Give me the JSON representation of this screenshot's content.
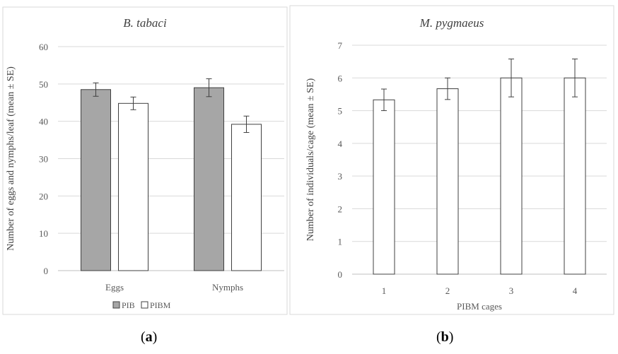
{
  "chart_data": [
    {
      "type": "bar",
      "title": "B. tabaci",
      "xlabel": "",
      "ylabel": "Number of eggs and nymphs/leaf (mean ± SE)",
      "ylim": [
        0,
        60
      ],
      "yticks": [
        0,
        10,
        20,
        30,
        40,
        50,
        60
      ],
      "categories": [
        "Eggs",
        "Nymphs"
      ],
      "series": [
        {
          "name": "PIB",
          "color": "#a6a6a6",
          "values": [
            48.5,
            49.0
          ],
          "se": [
            1.8,
            2.4
          ]
        },
        {
          "name": "PIBM",
          "color": "#ffffff",
          "values": [
            44.8,
            39.2
          ],
          "se": [
            1.7,
            2.2
          ]
        }
      ],
      "legend": "bottom",
      "grid": true
    },
    {
      "type": "bar",
      "title": "M. pygmaeus",
      "xlabel": "PIBM cages",
      "ylabel": "Number of individuals/cage (mean ± SE)",
      "ylim": [
        0,
        7
      ],
      "yticks": [
        0,
        1,
        2,
        3,
        4,
        5,
        6,
        7
      ],
      "categories": [
        "1",
        "2",
        "3",
        "4"
      ],
      "series": [
        {
          "name": "",
          "color": "#ffffff",
          "values": [
            5.33,
            5.67,
            6.0,
            6.0
          ],
          "se": [
            0.33,
            0.33,
            0.58,
            0.58
          ]
        }
      ],
      "grid": true
    }
  ],
  "panel_labels": {
    "a_open": "(",
    "a": "a",
    "a_close": ")",
    "b_open": "(",
    "b": "b",
    "b_close": ")"
  }
}
